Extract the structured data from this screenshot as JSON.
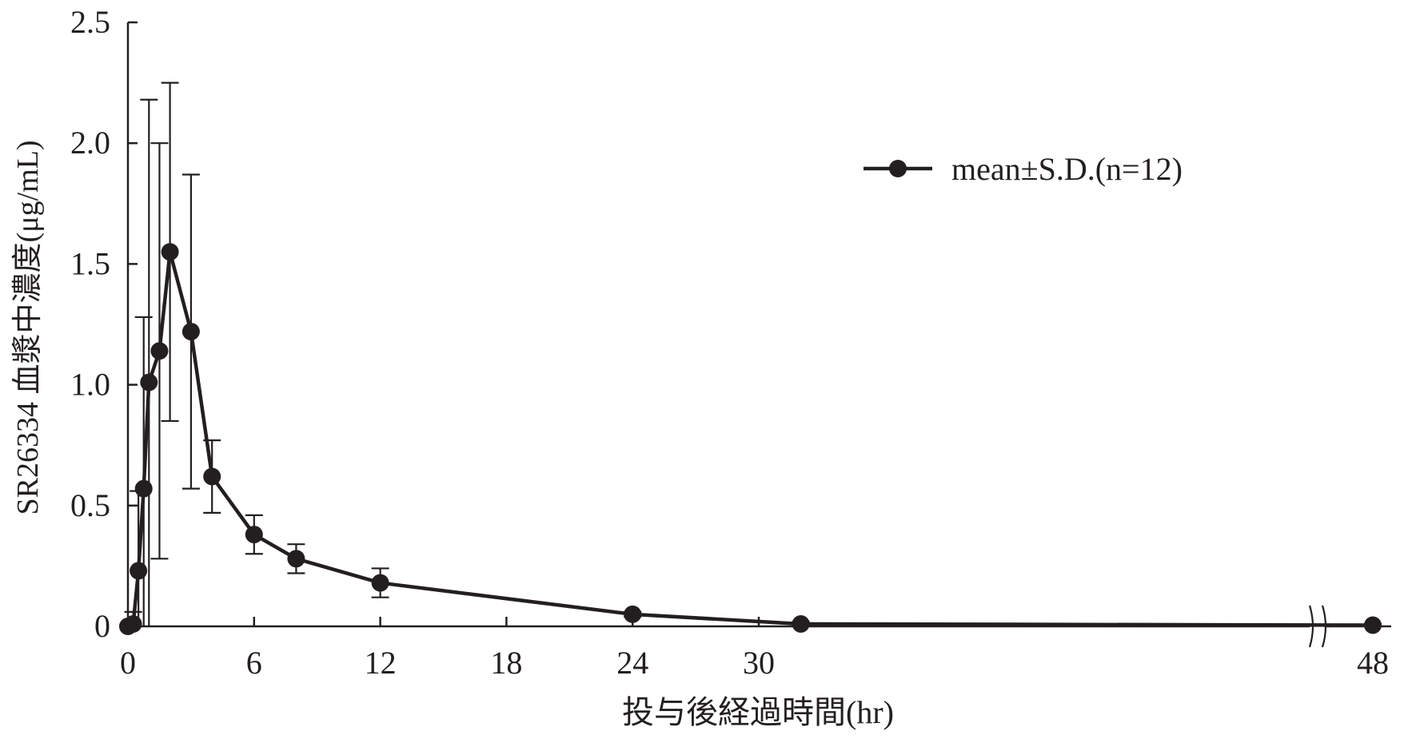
{
  "chart_data": {
    "type": "line",
    "title": "",
    "xlabel": "投与後経過時間(hr)",
    "ylabel": "SR26334 血漿中濃度(μg/mL)",
    "ylim": [
      0,
      2.5
    ],
    "y_ticks": [
      "0",
      "0.5",
      "1.0",
      "1.5",
      "2.0",
      "2.5"
    ],
    "x_ticks": [
      "0",
      "6",
      "12",
      "18",
      "24",
      "30",
      "48"
    ],
    "x_axis_break": "between 30 and 48",
    "grid": false,
    "legend_position": "top-right",
    "series": [
      {
        "name": "mean±S.D.(n=12)",
        "color": "#231f20",
        "marker": "filled-circle",
        "points": [
          {
            "x": 0,
            "y": 0,
            "sd": 0
          },
          {
            "x": 0.25,
            "y": 0.01,
            "sd": 0.05
          },
          {
            "x": 0.5,
            "y": 0.23,
            "sd": 0.33
          },
          {
            "x": 0.75,
            "y": 0.57,
            "sd": 0.71
          },
          {
            "x": 1,
            "y": 1.01,
            "sd": 1.17
          },
          {
            "x": 1.5,
            "y": 1.14,
            "sd": 0.86
          },
          {
            "x": 2,
            "y": 1.55,
            "sd": 0.7
          },
          {
            "x": 3,
            "y": 1.22,
            "sd": 0.65
          },
          {
            "x": 4,
            "y": 0.62,
            "sd": 0.15
          },
          {
            "x": 6,
            "y": 0.38,
            "sd": 0.08
          },
          {
            "x": 8,
            "y": 0.28,
            "sd": 0.06
          },
          {
            "x": 12,
            "y": 0.18,
            "sd": 0.06
          },
          {
            "x": 24,
            "y": 0.05,
            "sd": 0.01
          },
          {
            "x": 32,
            "y": 0.01,
            "sd": 0.01
          },
          {
            "x": 48,
            "y": 0.005,
            "sd": 0.005
          }
        ]
      }
    ]
  }
}
